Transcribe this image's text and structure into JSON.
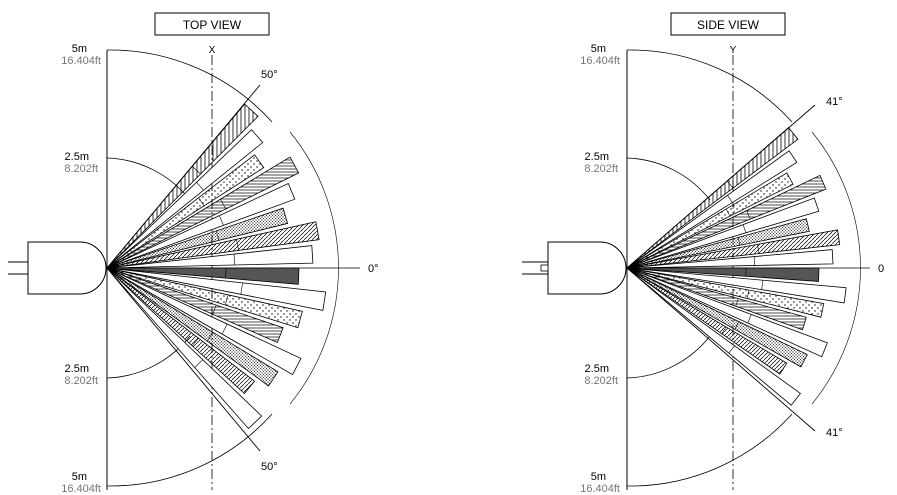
{
  "top_view": {
    "title": "TOP VIEW",
    "axis_letter": "X",
    "zero_label": "0°",
    "upper_angle": "50°",
    "lower_angle": "50°",
    "radius_labels": {
      "top_m": "5m",
      "top_ft": "16.404ft",
      "upper_mid_m": "2.5m",
      "upper_mid_ft": "8.202ft",
      "lower_mid_m": "2.5m",
      "lower_mid_ft": "8.202ft",
      "bottom_m": "5m",
      "bottom_ft": "16.404ft"
    },
    "half_angle_deg": 50
  },
  "side_view": {
    "title": "SIDE VIEW",
    "axis_letter": "Y",
    "zero_label": "0",
    "upper_angle": "41°",
    "lower_angle": "41°",
    "radius_labels": {
      "top_m": "5m",
      "top_ft": "16.404ft",
      "upper_mid_m": "2.5m",
      "upper_mid_ft": "8.202ft",
      "lower_mid_m": "2.5m",
      "lower_mid_ft": "8.202ft",
      "bottom_m": "5m",
      "bottom_ft": "16.404ft"
    },
    "half_angle_deg": 41
  },
  "colors": {
    "ink": "#000000",
    "grey_text": "#777777",
    "fill_dark": "#555555"
  }
}
